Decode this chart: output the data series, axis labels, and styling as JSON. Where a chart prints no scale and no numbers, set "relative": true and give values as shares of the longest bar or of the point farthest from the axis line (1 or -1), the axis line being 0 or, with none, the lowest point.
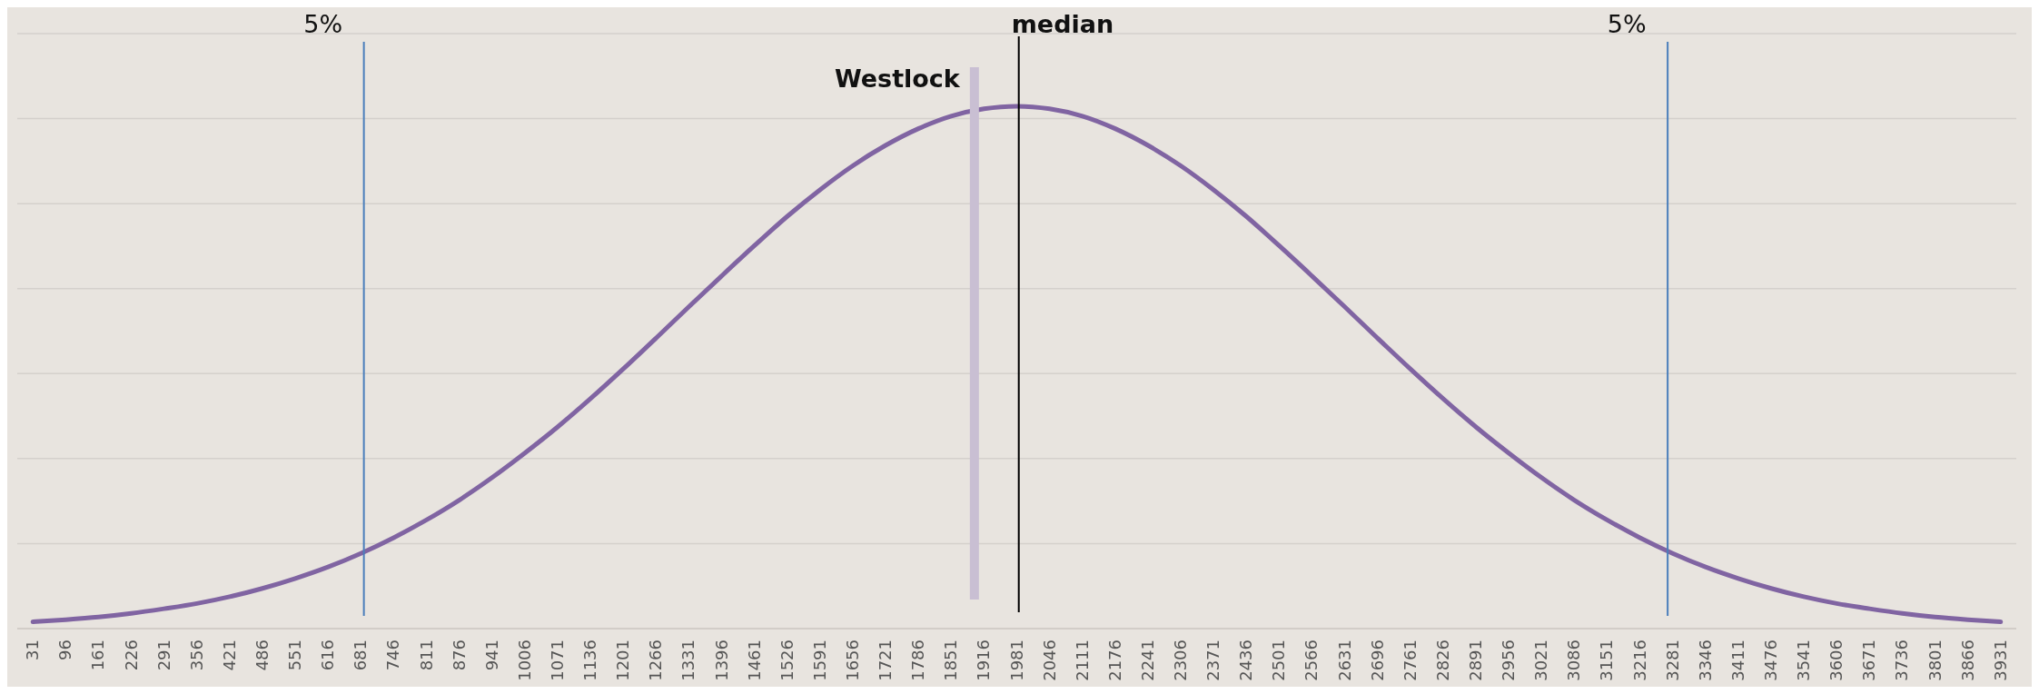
{
  "chart_data": {
    "type": "line",
    "relative": true,
    "grid": "y",
    "marker": "none",
    "line_style": "solid",
    "x": [
      31,
      96,
      161,
      226,
      291,
      356,
      421,
      486,
      551,
      616,
      681,
      746,
      811,
      876,
      941,
      1006,
      1071,
      1136,
      1201,
      1266,
      1331,
      1396,
      1461,
      1526,
      1591,
      1656,
      1721,
      1786,
      1851,
      1916,
      1981,
      2046,
      2111,
      2176,
      2241,
      2306,
      2371,
      2436,
      2501,
      2566,
      2631,
      2696,
      2761,
      2826,
      2891,
      2956,
      3021,
      3086,
      3151,
      3216,
      3281,
      3346,
      3411,
      3476,
      3541,
      3606,
      3671,
      3736,
      3801,
      3866,
      3931
    ],
    "xlim": [
      0,
      3962
    ],
    "xticks": [
      31,
      96,
      161,
      226,
      291,
      356,
      421,
      486,
      551,
      616,
      681,
      746,
      811,
      876,
      941,
      1006,
      1071,
      1136,
      1201,
      1266,
      1331,
      1396,
      1461,
      1526,
      1591,
      1656,
      1721,
      1786,
      1851,
      1916,
      1981,
      2046,
      2111,
      2176,
      2241,
      2306,
      2371,
      2436,
      2501,
      2566,
      2631,
      2696,
      2761,
      2826,
      2891,
      2956,
      3021,
      3086,
      3151,
      3216,
      3281,
      3346,
      3411,
      3476,
      3541,
      3606,
      3671,
      3736,
      3801,
      3866,
      3931
    ],
    "series": [
      {
        "color": "#8064a2",
        "values": [
          0.013,
          0.017,
          0.022,
          0.029,
          0.038,
          0.048,
          0.061,
          0.077,
          0.096,
          0.118,
          0.144,
          0.174,
          0.208,
          0.246,
          0.289,
          0.336,
          0.386,
          0.44,
          0.497,
          0.556,
          0.616,
          0.675,
          0.733,
          0.789,
          0.84,
          0.886,
          0.925,
          0.957,
          0.981,
          0.995,
          1,
          0.995,
          0.981,
          0.957,
          0.925,
          0.886,
          0.84,
          0.789,
          0.733,
          0.675,
          0.616,
          0.556,
          0.497,
          0.44,
          0.386,
          0.336,
          0.289,
          0.246,
          0.208,
          0.174,
          0.144,
          0.118,
          0.096,
          0.077,
          0.061,
          0.048,
          0.038,
          0.029,
          0.022,
          0.017,
          0.013
        ]
      }
    ],
    "ref_lines": [
      {
        "axis": "x",
        "value": 687,
        "color": "#4a7ebb"
      },
      {
        "axis": "x",
        "value": 1897,
        "label": "Westlock",
        "color": "#c9bfd3"
      },
      {
        "axis": "x",
        "value": 1985,
        "label": "median",
        "color": "#000000"
      },
      {
        "axis": "x",
        "value": 3271,
        "color": "#4a7ebb"
      }
    ],
    "annotations": [
      "5%",
      "5%"
    ]
  }
}
